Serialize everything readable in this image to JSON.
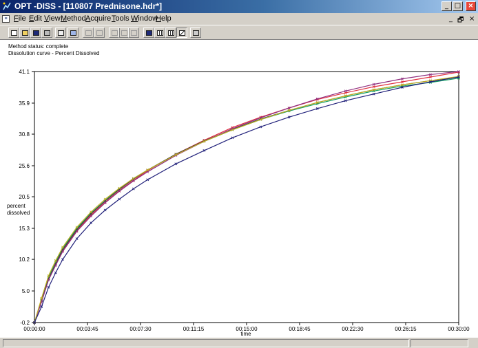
{
  "window": {
    "title": "OPT -DISS - [110807 Prednisone.hdr*]",
    "controls": {
      "minimize": "_",
      "maximize": "□",
      "close": "×"
    }
  },
  "menu": {
    "items": [
      "File",
      "Edit",
      "View",
      "Method",
      "Acquire",
      "Tools",
      "Window",
      "Help"
    ],
    "mdi_controls": {
      "minimize": "_",
      "restore": "🗗",
      "close": "×"
    }
  },
  "toolbar": {
    "buttons": [
      {
        "icon": "new-document-icon",
        "enabled": true
      },
      {
        "icon": "open-folder-icon",
        "enabled": true
      },
      {
        "icon": "save-icon",
        "enabled": true
      },
      {
        "icon": "print-icon",
        "enabled": true
      },
      {
        "icon": "copy-icon",
        "enabled": true
      },
      {
        "icon": "properties-icon",
        "enabled": true
      },
      {
        "icon": "run-icon",
        "enabled": false
      },
      {
        "icon": "stop-icon",
        "enabled": false
      },
      {
        "icon": "step-back-icon",
        "enabled": false
      },
      {
        "icon": "step-forward-icon",
        "enabled": false
      },
      {
        "icon": "list-icon",
        "enabled": false
      },
      {
        "icon": "report-icon",
        "enabled": true
      },
      {
        "icon": "table-icon",
        "enabled": true
      },
      {
        "icon": "grid-icon",
        "enabled": true
      },
      {
        "icon": "chart-icon",
        "enabled": true
      },
      {
        "icon": "instrument-icon",
        "enabled": true
      }
    ]
  },
  "content": {
    "method_status": "Method status: complete",
    "curve_title": "Dissolution curve - Percent Dissolved"
  },
  "chart_data": {
    "type": "line",
    "title": "",
    "xlabel": "time",
    "ylabel": "percent dissolved",
    "x_ticks": [
      "00:00:00",
      "00:03:45",
      "00:07:30",
      "00:11:15",
      "00:15:00",
      "00:18:45",
      "00:22:30",
      "00:26:15",
      "00:30:00"
    ],
    "y_ticks": [
      "-0.2",
      "5.0",
      "10.2",
      "15.3",
      "20.5",
      "25.6",
      "30.8",
      "35.9",
      "41.1"
    ],
    "xlim_minutes": [
      0,
      30
    ],
    "ylim": [
      -0.2,
      41.1
    ],
    "grid": false,
    "legend": "none",
    "colors": [
      "#e03040",
      "#10a060",
      "#404040",
      "#903080",
      "#c0b020",
      "#20207a"
    ],
    "x_minutes": [
      0,
      0.5,
      1,
      1.5,
      2,
      3,
      4,
      5,
      6,
      7,
      8,
      10,
      12,
      14,
      16,
      18,
      20,
      22,
      24,
      26,
      28,
      30
    ],
    "series": [
      {
        "values": [
          -0.2,
          3.5,
          7.0,
          9.4,
          11.6,
          14.9,
          17.5,
          19.6,
          21.5,
          23.2,
          24.8,
          27.5,
          29.8,
          31.9,
          33.6,
          35.1,
          36.5,
          37.6,
          38.6,
          39.4,
          40.2,
          41.0
        ]
      },
      {
        "values": [
          -0.2,
          3.6,
          7.3,
          9.8,
          12.0,
          15.3,
          17.8,
          19.9,
          21.8,
          23.5,
          24.9,
          27.4,
          29.6,
          31.5,
          33.2,
          34.6,
          35.8,
          36.9,
          37.9,
          38.7,
          39.3,
          40.0
        ]
      },
      {
        "values": [
          -0.2,
          3.4,
          7.0,
          9.5,
          11.8,
          15.1,
          17.7,
          19.8,
          21.7,
          23.4,
          24.9,
          27.5,
          29.7,
          31.6,
          33.3,
          34.7,
          36.0,
          37.1,
          38.1,
          38.9,
          39.6,
          40.2
        ]
      },
      {
        "values": [
          -0.2,
          3.2,
          6.8,
          9.2,
          11.5,
          14.8,
          17.3,
          19.5,
          21.4,
          23.1,
          24.6,
          27.3,
          29.6,
          31.7,
          33.5,
          35.1,
          36.6,
          37.9,
          39.0,
          39.9,
          40.6,
          41.1
        ]
      },
      {
        "values": [
          -0.2,
          3.8,
          7.5,
          10.0,
          12.2,
          15.5,
          18.0,
          20.1,
          21.9,
          23.5,
          24.9,
          27.4,
          29.6,
          31.5,
          33.2,
          34.7,
          36.0,
          37.1,
          38.1,
          38.9,
          39.6,
          40.3
        ]
      },
      {
        "values": [
          -0.2,
          2.4,
          5.6,
          8.0,
          10.2,
          13.6,
          16.2,
          18.3,
          20.1,
          21.8,
          23.3,
          25.9,
          28.1,
          30.2,
          32.0,
          33.6,
          35.0,
          36.3,
          37.4,
          38.5,
          39.4,
          40.2
        ]
      }
    ]
  }
}
